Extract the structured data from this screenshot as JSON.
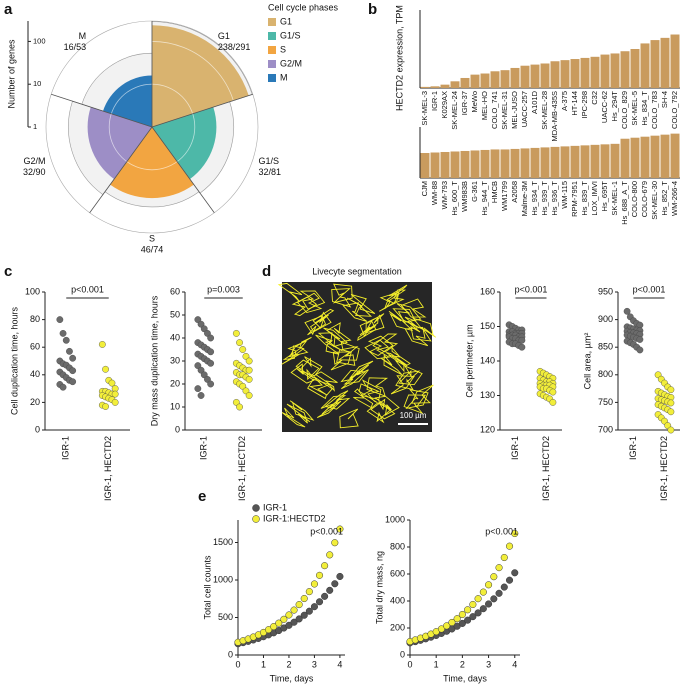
{
  "panels": [
    "a",
    "b",
    "c",
    "d",
    "e"
  ],
  "image": {
    "title": "Livecyte segmentation",
    "scale_bar": "100 µm"
  },
  "chart_data": [
    {
      "type": "polar_bar",
      "y_label": "Number of genes",
      "legend_title": "Cell cycle phases",
      "categories": [
        "G1",
        "G1/S",
        "S",
        "G2/M",
        "M"
      ],
      "values": [
        238,
        32,
        46,
        32,
        16
      ],
      "totals": [
        291,
        81,
        74,
        90,
        53
      ],
      "value_labels": [
        "238/291",
        "32/81",
        "46/74",
        "32/90",
        "16/53"
      ],
      "colors": [
        "#d9b36f",
        "#4db8a8",
        "#f2a541",
        "#9d8ec6",
        "#2a79b8"
      ],
      "ylim": [
        1,
        300
      ],
      "yticks": [
        1,
        10,
        100
      ],
      "log_scale": true
    },
    {
      "type": "bar",
      "y_label": "HECTD2 expression, TPM",
      "color": "#c99b5e",
      "ylim": [
        0,
        7
      ],
      "categories": [
        "SK-MEL-3",
        "IGR-1",
        "K029AX",
        "SK-MEL-24",
        "IGR-37",
        "MeWo",
        "MEL-HO",
        "COLO_741",
        "SK-MEL-31",
        "MEL-JUSO",
        "UACC-257",
        "A101D",
        "SK-MEL-28",
        "MDA-MB-435S",
        "A-375",
        "HT-144",
        "IPC-298",
        "C32",
        "UACC-62",
        "Hs_294T",
        "COLO_829",
        "SK-MEL-5",
        "Hs_834_T",
        "COLO_783",
        "SH-4",
        "COLO_792"
      ],
      "values": [
        0.1,
        0.15,
        0.3,
        0.6,
        0.9,
        1.2,
        1.3,
        1.5,
        1.6,
        1.8,
        2.0,
        2.1,
        2.2,
        2.4,
        2.5,
        2.6,
        2.7,
        2.8,
        3.0,
        3.1,
        3.3,
        3.5,
        4.0,
        4.3,
        4.5,
        4.8
      ]
    },
    {
      "type": "bar",
      "color": "#c99b5e",
      "ylim": [
        0,
        10
      ],
      "categories": [
        "CJM",
        "WM-88",
        "WM-793",
        "Hs_600_T",
        "WM983B",
        "G-361",
        "Hs_944_T",
        "HMCB",
        "WM1799",
        "A2058",
        "Malme-3M",
        "Hs_934_T",
        "Hs_939_T",
        "Hs_936_T",
        "WM-115",
        "RPM-7951",
        "Hs_839_T",
        "LOX_IMVI",
        "Hs_695T",
        "SK-MEL-1",
        "Hs_688_A_T",
        "COLO-800",
        "COLO-679",
        "SK-MEL-30",
        "Hs_852_T",
        "WM-266-4"
      ],
      "values": [
        4.9,
        5.0,
        5.1,
        5.2,
        5.3,
        5.4,
        5.5,
        5.6,
        5.6,
        5.7,
        5.8,
        5.9,
        6.0,
        6.1,
        6.2,
        6.3,
        6.4,
        6.5,
        6.6,
        6.7,
        7.7,
        7.9,
        8.1,
        8.3,
        8.5,
        8.7
      ]
    },
    {
      "type": "strip",
      "y_label": "Cell duplication time, hours",
      "annotation": "p<0.001",
      "categories": [
        "IGR-1",
        "IGR-1, HECTD2"
      ],
      "ylim": [
        0,
        100
      ],
      "yticks": [
        0,
        20,
        40,
        60,
        80,
        100
      ],
      "series": [
        {
          "color": "#6b6b6b",
          "values": [
            80,
            70,
            65,
            57,
            52,
            50,
            48,
            47,
            45,
            43,
            42,
            40,
            38,
            36,
            35,
            33,
            31
          ]
        },
        {
          "color": "#f2ee3a",
          "values": [
            62,
            44,
            36,
            34,
            30,
            28,
            28,
            27,
            26,
            26,
            25,
            24,
            23,
            22,
            20,
            18,
            17
          ]
        }
      ]
    },
    {
      "type": "strip",
      "y_label": "Dry mass duplication time, hours",
      "annotation": "p=0.003",
      "categories": [
        "IGR-1",
        "IGR-1, HECTD2"
      ],
      "ylim": [
        0,
        60
      ],
      "yticks": [
        0,
        10,
        20,
        30,
        40,
        50,
        60
      ],
      "series": [
        {
          "color": "#6b6b6b",
          "values": [
            48,
            46,
            44,
            42,
            40,
            38,
            37,
            36,
            35,
            34,
            33,
            32,
            31,
            30,
            29,
            28,
            26,
            24,
            22,
            20,
            18,
            15
          ]
        },
        {
          "color": "#f2ee3a",
          "values": [
            42,
            38,
            35,
            32,
            30,
            29,
            28,
            27,
            26,
            26,
            25,
            24,
            24,
            23,
            22,
            21,
            20,
            19,
            17,
            15,
            12,
            10
          ]
        }
      ]
    },
    {
      "type": "strip",
      "y_label": "Cell perimeter, µm",
      "annotation": "p<0.001",
      "categories": [
        "IGR-1",
        "IGR-1, HECTD2"
      ],
      "ylim": [
        120,
        160
      ],
      "yticks": [
        120,
        130,
        140,
        150,
        160
      ],
      "series": [
        {
          "color": "#6b6b6b",
          "values": [
            150.5,
            150,
            149.5,
            149,
            149,
            148.5,
            148.5,
            148,
            148,
            148,
            147.5,
            147.5,
            147.5,
            147,
            147,
            147,
            146.5,
            146.5,
            146,
            146,
            145.5,
            145,
            145,
            144.5,
            144
          ]
        },
        {
          "color": "#f2ee3a",
          "values": [
            137,
            136.5,
            136,
            135.5,
            135,
            135,
            134.5,
            134,
            134,
            133.5,
            133.5,
            133,
            133,
            133,
            132.5,
            132.5,
            132,
            132,
            131.5,
            131,
            130.5,
            130,
            129.5,
            129,
            128
          ]
        }
      ]
    },
    {
      "type": "strip",
      "y_label": "Cell area, µm²",
      "annotation": "p<0.001",
      "categories": [
        "IGR-1",
        "IGR-1, HECTD2"
      ],
      "ylim": [
        700,
        950
      ],
      "yticks": [
        700,
        750,
        800,
        850,
        900,
        950
      ],
      "series": [
        {
          "color": "#6b6b6b",
          "values": [
            915,
            905,
            898,
            893,
            890,
            887,
            885,
            883,
            881,
            880,
            879,
            877,
            876,
            875,
            873,
            872,
            870,
            868,
            866,
            864,
            861,
            858,
            855,
            850,
            845
          ]
        },
        {
          "color": "#f2ee3a",
          "values": [
            800,
            792,
            785,
            778,
            773,
            770,
            767,
            764,
            761,
            759,
            757,
            755,
            753,
            751,
            749,
            746,
            743,
            740,
            737,
            733,
            728,
            722,
            716,
            708,
            700
          ]
        }
      ]
    },
    {
      "type": "scatter",
      "x_label": "Time, days",
      "y_label": "Total cell counts",
      "annotation": "p<0.001",
      "x": [
        0,
        0.2,
        0.4,
        0.6,
        0.8,
        1.0,
        1.2,
        1.4,
        1.6,
        1.8,
        2.0,
        2.2,
        2.4,
        2.6,
        2.8,
        3.0,
        3.2,
        3.4,
        3.6,
        3.8,
        4.0
      ],
      "xlim": [
        0,
        4.2
      ],
      "xticks": [
        0,
        1,
        2,
        3,
        4
      ],
      "ylim": [
        0,
        1800
      ],
      "yticks": [
        0,
        500,
        1000,
        1500
      ],
      "series": [
        {
          "name": "IGR-1",
          "color": "#555555",
          "values": [
            150,
            165,
            182,
            201,
            221,
            244,
            269,
            296,
            326,
            360,
            396,
            437,
            481,
            530,
            584,
            644,
            710,
            782,
            862,
            950,
            1047
          ]
        },
        {
          "name": "IGR-1:HECTD2",
          "color": "#f2ee3a",
          "values": [
            170,
            191,
            214,
            240,
            269,
            301,
            338,
            379,
            425,
            476,
            534,
            599,
            672,
            753,
            845,
            947,
            1062,
            1191,
            1335,
            1497,
            1679
          ]
        }
      ]
    },
    {
      "type": "scatter",
      "x_label": "Time, days",
      "y_label": "Total dry mass, ng",
      "annotation": "p<0.001",
      "x": [
        0,
        0.2,
        0.4,
        0.6,
        0.8,
        1.0,
        1.2,
        1.4,
        1.6,
        1.8,
        2.0,
        2.2,
        2.4,
        2.6,
        2.8,
        3.0,
        3.2,
        3.4,
        3.6,
        3.8,
        4.0
      ],
      "xlim": [
        0,
        4.2
      ],
      "xticks": [
        0,
        1,
        2,
        3,
        4
      ],
      "ylim": [
        0,
        1000
      ],
      "yticks": [
        0,
        200,
        400,
        600,
        800,
        1000
      ],
      "series": [
        {
          "color": "#555555",
          "values": [
            90,
            99,
            109,
            120,
            132,
            145,
            160,
            176,
            193,
            213,
            234,
            258,
            284,
            312,
            343,
            378,
            416,
            457,
            503,
            554,
            609
          ]
        },
        {
          "color": "#f2ee3a",
          "values": [
            100,
            112,
            125,
            139,
            155,
            173,
            193,
            216,
            241,
            269,
            300,
            335,
            374,
            417,
            466,
            520,
            580,
            647,
            722,
            806,
            900
          ]
        }
      ]
    }
  ]
}
